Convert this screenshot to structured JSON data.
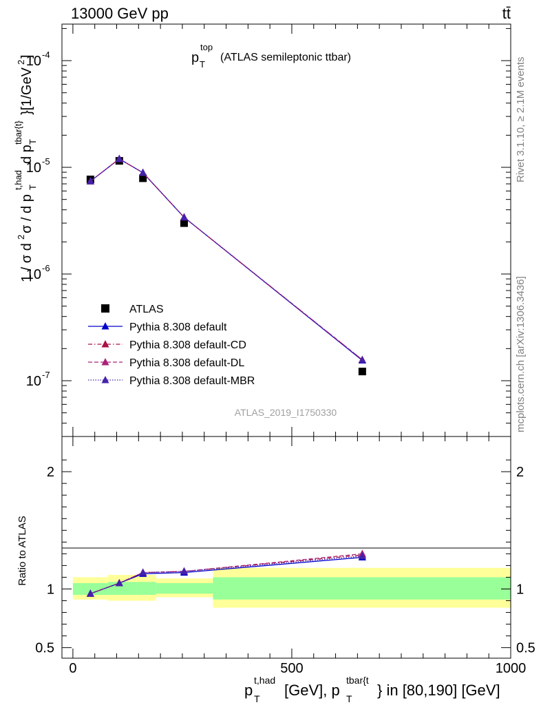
{
  "header": {
    "energy_label": "13000 GeV pp",
    "process_label": "tt̄"
  },
  "side_labels": {
    "rivet": "Rivet 3.1.10, ≥ 2.1M events",
    "mcplots": "mcplots.cern.ch [arXiv:1306.3436]"
  },
  "chart_data": [
    {
      "type": "scatter",
      "panel": "main",
      "title": "p_T^top (ATLAS semileptonic ttbar)",
      "ylabel": "1 / σ d²σ / d p_T^{t,had} d p_T^{tbar{t}}[1/GeV²]",
      "yscale": "log",
      "ylim": [
        3e-08,
        0.00022
      ],
      "xlim": [
        -25,
        1000
      ],
      "y_tick_labels": [
        "10^-7",
        "10^-6",
        "10^-5",
        "10^-4"
      ],
      "watermark": "ATLAS_2019_I1750330",
      "legend_position": "bottom-left",
      "series": [
        {
          "name": "ATLAS",
          "marker": "square",
          "color": "#000000",
          "x": [
            40,
            106,
            160,
            254,
            661
          ],
          "y": [
            7.7e-06,
            1.15e-05,
            7.9e-06,
            3e-06,
            1.22e-07
          ]
        },
        {
          "name": "Pythia 8.308 default",
          "marker": "triangle",
          "line": "solid",
          "color": "#0000cc",
          "x": [
            40,
            106,
            160,
            254,
            661
          ],
          "y": [
            7.4e-06,
            1.2e-05,
            8.9e-06,
            3.4e-06,
            1.55e-07
          ]
        },
        {
          "name": "Pythia 8.308 default-CD",
          "marker": "triangle",
          "line": "dashdot",
          "color": "#aa1144",
          "x": [
            40,
            106,
            160,
            254,
            661
          ],
          "y": [
            7.4e-06,
            1.2e-05,
            8.9e-06,
            3.4e-06,
            1.57e-07
          ]
        },
        {
          "name": "Pythia 8.308 default-DL",
          "marker": "triangle",
          "line": "dashed",
          "color": "#aa2277",
          "x": [
            40,
            106,
            160,
            254,
            661
          ],
          "y": [
            7.4e-06,
            1.2e-05,
            8.9e-06,
            3.4e-06,
            1.57e-07
          ]
        },
        {
          "name": "Pythia 8.308 default-MBR",
          "marker": "triangle",
          "line": "dotted",
          "color": "#4422aa",
          "x": [
            40,
            106,
            160,
            254,
            661
          ],
          "y": [
            7.4e-06,
            1.2e-05,
            8.9e-06,
            3.4e-06,
            1.56e-07
          ]
        }
      ]
    },
    {
      "type": "line",
      "panel": "ratio",
      "ylabel": "Ratio to ATLAS",
      "xlabel": "p_T^{t,had} [GeV], p_T^{tbar{t}} in [80,190] [GeV]",
      "xlim": [
        -25,
        1000
      ],
      "ylim": [
        0.41,
        2.3
      ],
      "x_ticks": [
        0,
        500,
        1000
      ],
      "y_ticks": [
        0.5,
        1,
        2
      ],
      "reference_line": 1,
      "bands": [
        {
          "x_from": 0,
          "x_to": 80,
          "inner": [
            0.95,
            1.05
          ],
          "outer": [
            0.91,
            1.1
          ]
        },
        {
          "x_from": 80,
          "x_to": 145,
          "inner": [
            0.95,
            1.06
          ],
          "outer": [
            0.9,
            1.12
          ]
        },
        {
          "x_from": 145,
          "x_to": 190,
          "inner": [
            0.95,
            1.06
          ],
          "outer": [
            0.9,
            1.12
          ]
        },
        {
          "x_from": 190,
          "x_to": 320,
          "inner": [
            0.96,
            1.05
          ],
          "outer": [
            0.93,
            1.09
          ]
        },
        {
          "x_from": 320,
          "x_to": 1000,
          "inner": [
            0.91,
            1.1
          ],
          "outer": [
            0.84,
            1.18
          ]
        }
      ],
      "band_colors": {
        "inner": "#99ff99",
        "outer": "#ffff99"
      },
      "series": [
        {
          "name": "Pythia 8.308 default",
          "color": "#0000cc",
          "line": "solid",
          "x": [
            40,
            106,
            160,
            254,
            661
          ],
          "y": [
            0.96,
            1.05,
            1.13,
            1.14,
            1.27
          ]
        },
        {
          "name": "Pythia 8.308 default-CD",
          "color": "#aa1144",
          "line": "dashdot",
          "x": [
            40,
            106,
            160,
            254,
            661
          ],
          "y": [
            0.96,
            1.05,
            1.14,
            1.15,
            1.29
          ]
        },
        {
          "name": "Pythia 8.308 default-DL",
          "color": "#aa2277",
          "line": "dashed",
          "x": [
            40,
            106,
            160,
            254,
            661
          ],
          "y": [
            0.96,
            1.05,
            1.14,
            1.15,
            1.3
          ]
        },
        {
          "name": "Pythia 8.308 default-MBR",
          "color": "#4422aa",
          "line": "dotted",
          "x": [
            40,
            106,
            160,
            254,
            661
          ],
          "y": [
            0.96,
            1.05,
            1.14,
            1.15,
            1.28
          ]
        }
      ]
    }
  ]
}
